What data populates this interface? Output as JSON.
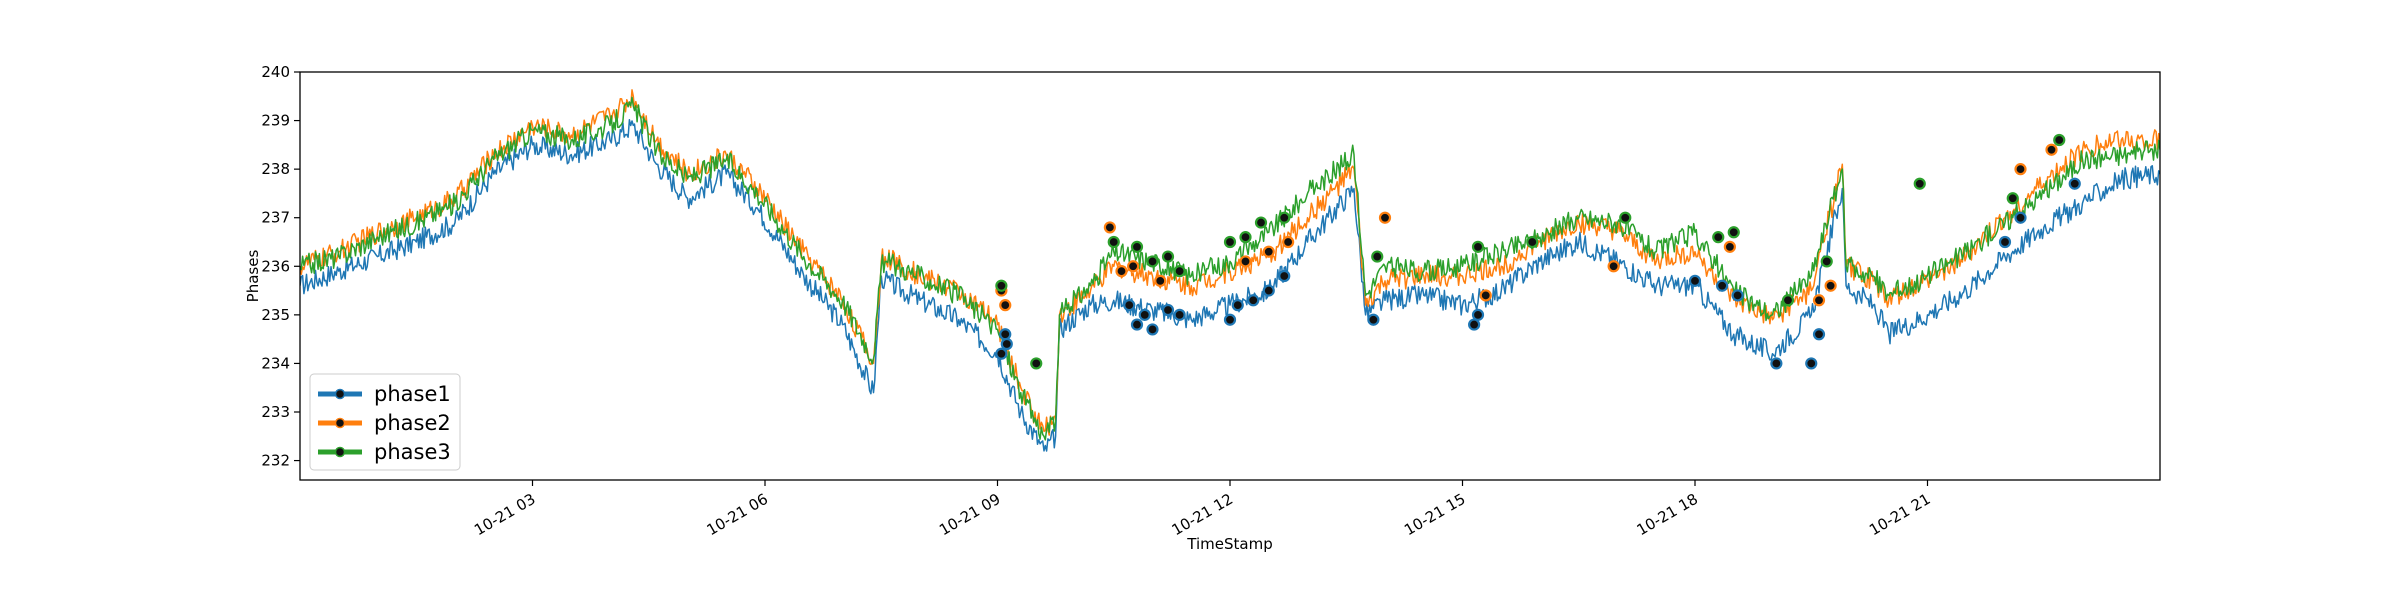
{
  "chart_data": {
    "type": "line",
    "title": "",
    "xlabel": "TimeStamp",
    "ylabel": "Phases",
    "xlim": [
      "10-21 00:00",
      "10-21 24:00"
    ],
    "ylim": [
      231.6,
      240.0
    ],
    "yticks": [
      232,
      233,
      234,
      235,
      236,
      237,
      238,
      239,
      240
    ],
    "xticks": [
      {
        "hour": 3,
        "label": "10-21 03"
      },
      {
        "hour": 6,
        "label": "10-21 06"
      },
      {
        "hour": 9,
        "label": "10-21 09"
      },
      {
        "hour": 12,
        "label": "10-21 12"
      },
      {
        "hour": 15,
        "label": "10-21 15"
      },
      {
        "hour": 18,
        "label": "10-21 18"
      },
      {
        "hour": 21,
        "label": "10-21 21"
      }
    ],
    "grid": false,
    "legend": "lower-left",
    "series": [
      {
        "name": "phase1",
        "color": "#1f77b4",
        "x": [
          0.0,
          0.5,
          1.0,
          1.5,
          2.0,
          2.5,
          3.0,
          3.5,
          4.0,
          4.3,
          4.6,
          5.0,
          5.5,
          5.9,
          6.5,
          7.0,
          7.4,
          7.5,
          7.55,
          8.0,
          8.5,
          9.0,
          9.3,
          9.6,
          9.75,
          9.8,
          10.2,
          10.5,
          11.0,
          11.5,
          12.0,
          12.5,
          13.0,
          13.6,
          13.75,
          14.0,
          14.5,
          15.0,
          15.5,
          16.0,
          16.5,
          17.0,
          17.5,
          18.0,
          18.5,
          19.0,
          19.5,
          19.9,
          19.95,
          20.3,
          20.5,
          21.0,
          21.5,
          22.0,
          22.5,
          23.0,
          23.5,
          24.0
        ],
        "y": [
          235.6,
          235.9,
          236.2,
          236.5,
          236.9,
          237.9,
          238.5,
          238.3,
          238.6,
          238.9,
          238.1,
          237.4,
          237.9,
          237.2,
          235.8,
          234.8,
          233.4,
          235.8,
          235.7,
          235.3,
          234.9,
          234.2,
          233.0,
          232.2,
          232.5,
          234.7,
          235.2,
          235.3,
          235.1,
          234.9,
          235.2,
          235.5,
          236.5,
          237.6,
          235.0,
          235.3,
          235.4,
          235.2,
          235.5,
          236.1,
          236.5,
          236.1,
          235.6,
          235.6,
          234.6,
          234.2,
          235.0,
          237.6,
          235.6,
          235.2,
          234.6,
          235.0,
          235.5,
          236.2,
          236.8,
          237.3,
          237.8,
          237.9
        ]
      },
      {
        "name": "phase2",
        "color": "#ff7f0e",
        "x": [
          0.0,
          0.5,
          1.0,
          1.5,
          2.0,
          2.5,
          3.0,
          3.5,
          4.0,
          4.3,
          4.6,
          5.0,
          5.5,
          5.9,
          6.5,
          7.0,
          7.4,
          7.5,
          7.55,
          8.0,
          8.5,
          9.0,
          9.3,
          9.6,
          9.75,
          9.8,
          10.2,
          10.5,
          11.0,
          11.5,
          12.0,
          12.5,
          13.0,
          13.6,
          13.75,
          14.0,
          14.5,
          15.0,
          15.5,
          16.0,
          16.5,
          17.0,
          17.5,
          18.0,
          18.5,
          19.0,
          19.5,
          19.9,
          19.95,
          20.3,
          20.5,
          21.0,
          21.5,
          22.0,
          22.5,
          23.0,
          23.5,
          24.0
        ],
        "y": [
          236.0,
          236.3,
          236.7,
          237.0,
          237.4,
          238.3,
          238.9,
          238.7,
          239.1,
          239.5,
          238.6,
          237.9,
          238.3,
          237.6,
          236.3,
          235.3,
          234.0,
          236.1,
          236.2,
          235.8,
          235.5,
          234.8,
          233.5,
          232.6,
          232.9,
          235.0,
          235.5,
          236.0,
          235.8,
          235.6,
          235.9,
          236.2,
          237.0,
          238.0,
          235.2,
          235.7,
          235.8,
          235.8,
          236.0,
          236.5,
          236.9,
          236.7,
          236.1,
          236.3,
          235.3,
          234.9,
          235.5,
          238.1,
          236.0,
          235.7,
          235.3,
          235.7,
          236.2,
          237.0,
          237.7,
          238.4,
          238.6,
          238.6
        ]
      },
      {
        "name": "phase3",
        "color": "#2ca02c",
        "x": [
          0.0,
          0.5,
          1.0,
          1.5,
          2.0,
          2.5,
          3.0,
          3.5,
          4.0,
          4.3,
          4.6,
          5.0,
          5.5,
          5.9,
          6.5,
          7.0,
          7.4,
          7.5,
          7.55,
          8.0,
          8.5,
          9.0,
          9.3,
          9.6,
          9.75,
          9.8,
          10.2,
          10.5,
          11.0,
          11.5,
          12.0,
          12.5,
          13.0,
          13.6,
          13.75,
          14.0,
          14.5,
          15.0,
          15.5,
          16.0,
          16.5,
          17.0,
          17.5,
          18.0,
          18.5,
          19.0,
          19.5,
          19.9,
          19.95,
          20.3,
          20.5,
          21.0,
          21.5,
          22.0,
          22.5,
          23.0,
          23.5,
          24.0
        ],
        "y": [
          236.0,
          236.2,
          236.6,
          236.9,
          237.3,
          238.2,
          238.8,
          238.6,
          238.9,
          239.3,
          238.4,
          237.8,
          238.2,
          237.5,
          236.2,
          235.3,
          234.1,
          236.0,
          236.1,
          235.8,
          235.4,
          234.7,
          233.4,
          232.5,
          232.8,
          235.0,
          235.6,
          236.3,
          236.1,
          235.8,
          236.1,
          236.7,
          237.5,
          238.3,
          235.4,
          236.0,
          235.9,
          236.0,
          236.3,
          236.6,
          237.0,
          236.9,
          236.3,
          236.7,
          235.5,
          235.0,
          235.8,
          238.0,
          236.0,
          235.8,
          235.4,
          235.8,
          236.3,
          236.9,
          237.5,
          238.2,
          238.3,
          238.4
        ]
      }
    ],
    "marked_points": [
      {
        "series": "phase1",
        "x": [
          9.05,
          9.1,
          9.12,
          10.7,
          10.8,
          10.9,
          11.0,
          11.2,
          11.35,
          12.0,
          12.1,
          12.3,
          12.5,
          12.7,
          13.85,
          15.15,
          15.2,
          18.0,
          18.35,
          18.55,
          19.05,
          19.5,
          19.6,
          22.0,
          22.2,
          22.9
        ],
        "y": [
          234.2,
          234.6,
          234.4,
          235.2,
          234.8,
          235.0,
          234.7,
          235.1,
          235.0,
          234.9,
          235.2,
          235.3,
          235.5,
          235.8,
          234.9,
          234.8,
          235.0,
          235.7,
          235.6,
          235.4,
          234.0,
          234.0,
          234.6,
          236.5,
          237.0,
          237.7
        ]
      },
      {
        "series": "phase2",
        "x": [
          9.05,
          9.1,
          10.45,
          10.6,
          10.75,
          11.1,
          12.2,
          12.5,
          12.75,
          14.0,
          15.3,
          16.95,
          18.45,
          19.6,
          19.75,
          22.2,
          22.6
        ],
        "y": [
          235.5,
          235.2,
          236.8,
          235.9,
          236.0,
          235.7,
          236.1,
          236.3,
          236.5,
          237.0,
          235.4,
          236.0,
          236.4,
          235.3,
          235.6,
          238.0,
          238.4
        ]
      },
      {
        "series": "phase3",
        "x": [
          9.05,
          9.5,
          10.5,
          10.8,
          11.0,
          11.2,
          11.35,
          12.0,
          12.2,
          12.4,
          12.7,
          13.9,
          15.2,
          15.9,
          17.1,
          18.3,
          18.5,
          19.2,
          19.7,
          20.9,
          22.1,
          22.7
        ],
        "y": [
          235.6,
          234.0,
          236.5,
          236.4,
          236.1,
          236.2,
          235.9,
          236.5,
          236.6,
          236.9,
          237.0,
          236.2,
          236.4,
          236.5,
          237.0,
          236.6,
          236.7,
          235.3,
          236.1,
          237.7,
          237.4,
          238.6
        ]
      }
    ]
  }
}
